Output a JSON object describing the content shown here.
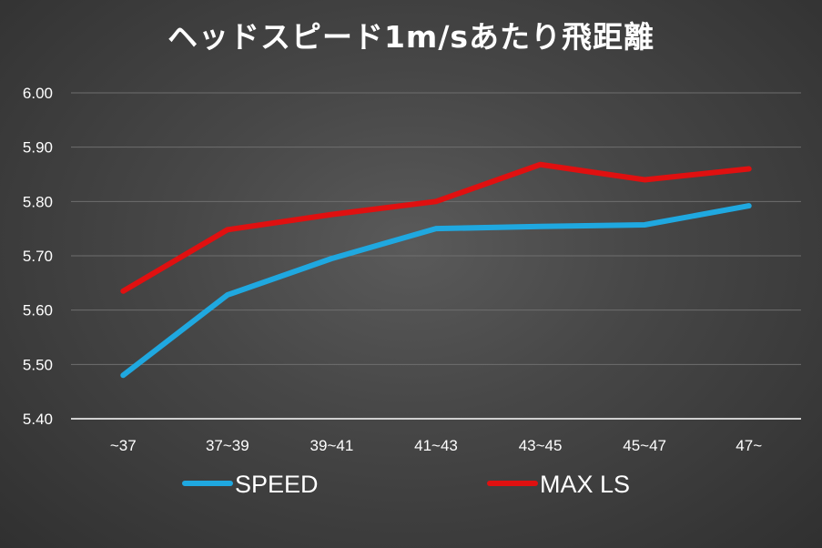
{
  "chart_data": {
    "type": "line",
    "title": "ヘッドスピード1m/sあたり飛距離",
    "categories": [
      "~37",
      "37~39",
      "39~41",
      "41~43",
      "43~45",
      "45~47",
      "47~"
    ],
    "y_ticks": [
      "5.40",
      "5.50",
      "5.60",
      "5.70",
      "5.80",
      "5.90",
      "6.00"
    ],
    "ylim": [
      5.4,
      6.0
    ],
    "grid": true,
    "legend_position": "bottom",
    "series": [
      {
        "name": "SPEED",
        "color": "#1fa8e0",
        "values": [
          5.48,
          5.628,
          5.695,
          5.75,
          5.754,
          5.757,
          5.792
        ]
      },
      {
        "name": "MAX LS",
        "color": "#e01010",
        "values": [
          5.635,
          5.748,
          5.776,
          5.8,
          5.868,
          5.84,
          5.86
        ]
      }
    ]
  }
}
